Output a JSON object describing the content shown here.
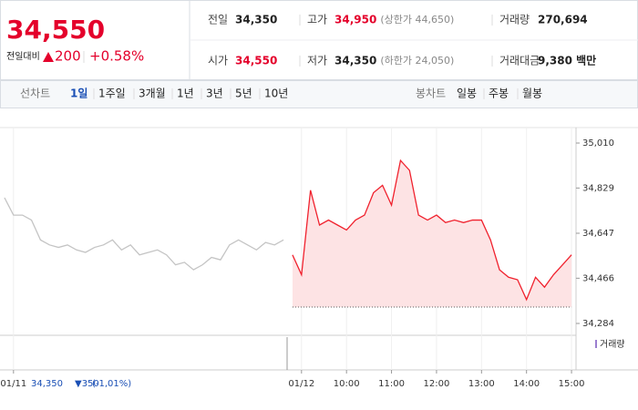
{
  "header": {
    "price": "34,550",
    "change_label": "전일대비",
    "change": "200",
    "change_rate": "+0.58%",
    "stats": [
      [
        {
          "label": "전일",
          "value": "34,350"
        },
        {
          "label": "고가",
          "value": "34,950",
          "note": "(상한가 44,650)"
        },
        {
          "label": "거래량",
          "value": "270,694"
        }
      ],
      [
        {
          "label": "시가",
          "value": "34,550"
        },
        {
          "label": "저가",
          "value": "34,350",
          "note": "(하한가 24,050)"
        },
        {
          "label": "거래대금",
          "value": "9,380 백만"
        }
      ]
    ]
  },
  "toolbar": {
    "line_label": "선차트",
    "line_periods": [
      "1일",
      "1주일",
      "3개월",
      "1년",
      "3년",
      "5년",
      "10년"
    ],
    "candle_label": "봉차트",
    "candle_periods": [
      "일봉",
      "주봉",
      "월봉"
    ]
  },
  "chart_data": {
    "type": "line",
    "categories": [
      null,
      "01/11",
      null,
      null,
      null,
      null,
      null,
      null,
      null,
      null,
      null,
      null,
      null,
      null,
      null,
      null,
      null,
      null,
      null,
      null,
      null,
      null,
      null,
      null,
      null,
      null,
      null,
      null,
      null,
      null,
      null,
      null,
      null,
      "01/12",
      null,
      null,
      null,
      null,
      "10:00",
      null,
      null,
      null,
      null,
      "11:00",
      null,
      null,
      null,
      null,
      "12:00",
      null,
      null,
      null,
      null,
      "13:00",
      null,
      null,
      null,
      null,
      "14:00",
      null,
      null,
      null,
      null,
      "15:00"
    ],
    "series": [
      {
        "name": "01/11",
        "color": "#c4c4c4",
        "values": [
          34790,
          34720,
          34720,
          34700,
          34620,
          34600,
          34590,
          34600,
          34580,
          34570,
          34590,
          34600,
          34620,
          34580,
          34600,
          34560,
          34570,
          34580,
          34560,
          34520,
          34530,
          34500,
          34520,
          34550,
          34540,
          34600,
          34620,
          34600,
          34580,
          34610,
          34600,
          34620,
          null,
          null,
          null,
          null,
          null,
          null,
          null,
          null,
          null,
          null,
          null,
          null,
          null,
          null,
          null,
          null,
          null,
          null,
          null,
          null,
          null,
          null,
          null,
          null,
          null,
          null,
          null,
          null,
          null,
          null,
          null,
          null
        ]
      },
      {
        "name": "01/12",
        "color": "#f0212d",
        "area_color": "#fde3e4",
        "values": [
          null,
          null,
          null,
          null,
          null,
          null,
          null,
          null,
          null,
          null,
          null,
          null,
          null,
          null,
          null,
          null,
          null,
          null,
          null,
          null,
          null,
          null,
          null,
          null,
          null,
          null,
          null,
          null,
          null,
          null,
          null,
          null,
          34560,
          34480,
          34820,
          34680,
          34700,
          34680,
          34660,
          34700,
          34720,
          34810,
          34840,
          34760,
          34940,
          34900,
          34720,
          34700,
          34720,
          34690,
          34700,
          34690,
          34700,
          34700,
          34620,
          34500,
          34470,
          34460,
          34380,
          34470,
          34430,
          34480,
          34520,
          34560
        ]
      }
    ],
    "reference_line": 34350,
    "ylim": [
      34284,
      35010
    ],
    "yticks": [
      {
        "value": 34284,
        "label": "34,284"
      },
      {
        "value": 34466,
        "label": "34,466"
      },
      {
        "value": 34647,
        "label": "34,647"
      },
      {
        "value": 34829,
        "label": "34,829"
      },
      {
        "value": 35010,
        "label": "35,010"
      }
    ],
    "volume_legend": "거래량",
    "prev_day_note": [
      "34,350",
      "▼350",
      "(-1,01%)"
    ]
  }
}
